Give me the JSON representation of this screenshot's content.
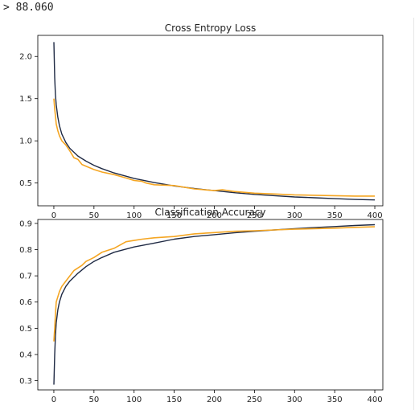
{
  "console": {
    "line": "> 88.060"
  },
  "colors": {
    "train": "#1f2a44",
    "test": "#f5a623",
    "axes": "#000000",
    "background": "#ffffff"
  },
  "chart_data": [
    {
      "type": "line",
      "title": "Cross Entropy Loss",
      "xlabel": "",
      "ylabel": "",
      "xlim": [
        -20,
        410
      ],
      "ylim": [
        0.23,
        2.25
      ],
      "xticks": [
        0,
        50,
        100,
        150,
        200,
        250,
        300,
        350,
        400
      ],
      "yticks": [
        0.5,
        1.0,
        1.5,
        2.0
      ],
      "ytick_labels": [
        "0.5",
        "1.0",
        "1.5",
        "2.0"
      ],
      "grid": false,
      "series": [
        {
          "color": "#1f2a44",
          "x": [
            0,
            1,
            2,
            3,
            5,
            7,
            10,
            15,
            20,
            30,
            40,
            50,
            60,
            75,
            100,
            125,
            150,
            175,
            200,
            225,
            250,
            275,
            300,
            325,
            350,
            375,
            400
          ],
          "y": [
            2.17,
            1.75,
            1.55,
            1.43,
            1.28,
            1.18,
            1.08,
            0.98,
            0.91,
            0.82,
            0.76,
            0.71,
            0.67,
            0.62,
            0.555,
            0.505,
            0.465,
            0.435,
            0.41,
            0.385,
            0.365,
            0.35,
            0.335,
            0.325,
            0.315,
            0.305,
            0.3
          ]
        },
        {
          "color": "#f5a623",
          "x": [
            0,
            1,
            2,
            3,
            5,
            7,
            10,
            15,
            20,
            25,
            30,
            35,
            40,
            50,
            60,
            75,
            90,
            100,
            110,
            115,
            125,
            150,
            175,
            200,
            210,
            225,
            250,
            275,
            300,
            325,
            350,
            375,
            400
          ],
          "y": [
            1.5,
            1.38,
            1.3,
            1.2,
            1.12,
            1.06,
            1.0,
            0.95,
            0.88,
            0.8,
            0.78,
            0.72,
            0.7,
            0.66,
            0.63,
            0.6,
            0.56,
            0.53,
            0.52,
            0.5,
            0.48,
            0.47,
            0.43,
            0.41,
            0.42,
            0.4,
            0.38,
            0.37,
            0.36,
            0.355,
            0.35,
            0.345,
            0.345
          ]
        }
      ]
    },
    {
      "type": "line",
      "title": "Classification Accuracy",
      "xlabel": "",
      "ylabel": "",
      "xlim": [
        -20,
        410
      ],
      "ylim": [
        0.265,
        0.915
      ],
      "xticks": [
        0,
        50,
        100,
        150,
        200,
        250,
        300,
        350,
        400
      ],
      "yticks": [
        0.3,
        0.4,
        0.5,
        0.6,
        0.7,
        0.8,
        0.9
      ],
      "ytick_labels": [
        "0.3",
        "0.4",
        "0.5",
        "0.6",
        "0.7",
        "0.8",
        "0.9"
      ],
      "grid": false,
      "series": [
        {
          "color": "#1f2a44",
          "x": [
            0,
            1,
            2,
            3,
            5,
            7,
            10,
            15,
            20,
            30,
            40,
            50,
            60,
            75,
            100,
            125,
            150,
            175,
            200,
            225,
            250,
            275,
            300,
            325,
            350,
            375,
            400
          ],
          "y": [
            0.285,
            0.4,
            0.47,
            0.52,
            0.57,
            0.6,
            0.63,
            0.66,
            0.68,
            0.71,
            0.735,
            0.755,
            0.77,
            0.79,
            0.81,
            0.825,
            0.84,
            0.85,
            0.857,
            0.864,
            0.87,
            0.875,
            0.88,
            0.884,
            0.888,
            0.892,
            0.895
          ]
        },
        {
          "color": "#f5a623",
          "x": [
            0,
            1,
            2,
            3,
            5,
            7,
            10,
            15,
            20,
            25,
            30,
            35,
            40,
            50,
            60,
            75,
            90,
            100,
            110,
            125,
            150,
            175,
            200,
            225,
            250,
            275,
            300,
            325,
            350,
            375,
            400
          ],
          "y": [
            0.45,
            0.5,
            0.55,
            0.6,
            0.62,
            0.64,
            0.66,
            0.68,
            0.7,
            0.72,
            0.73,
            0.74,
            0.755,
            0.77,
            0.79,
            0.805,
            0.83,
            0.835,
            0.84,
            0.845,
            0.85,
            0.86,
            0.865,
            0.87,
            0.872,
            0.875,
            0.878,
            0.88,
            0.882,
            0.885,
            0.887
          ]
        }
      ]
    }
  ]
}
